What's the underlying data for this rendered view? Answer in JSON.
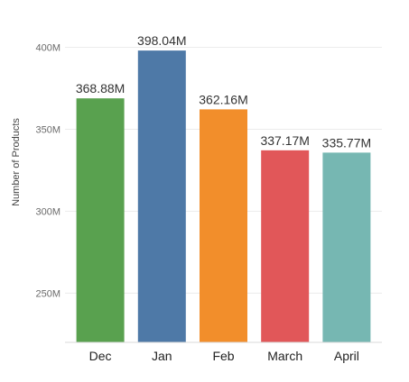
{
  "chart_data": {
    "type": "bar",
    "title": "",
    "xlabel": "",
    "ylabel": "Number of Products",
    "categories": [
      "Dec",
      "Jan",
      "Feb",
      "March",
      "April"
    ],
    "values": [
      368.88,
      398.04,
      362.16,
      337.17,
      335.77
    ],
    "value_labels": [
      "368.88M",
      "398.04M",
      "362.16M",
      "337.17M",
      "335.77M"
    ],
    "colors": [
      "#59a14f",
      "#4e79a7",
      "#f28e2b",
      "#e15759",
      "#76b7b2"
    ],
    "yticks": [
      250,
      300,
      350,
      400
    ],
    "ytick_labels": [
      "250M",
      "300M",
      "350M",
      "400M"
    ],
    "ylim": [
      220,
      408
    ],
    "grid": true,
    "legend": "none"
  }
}
